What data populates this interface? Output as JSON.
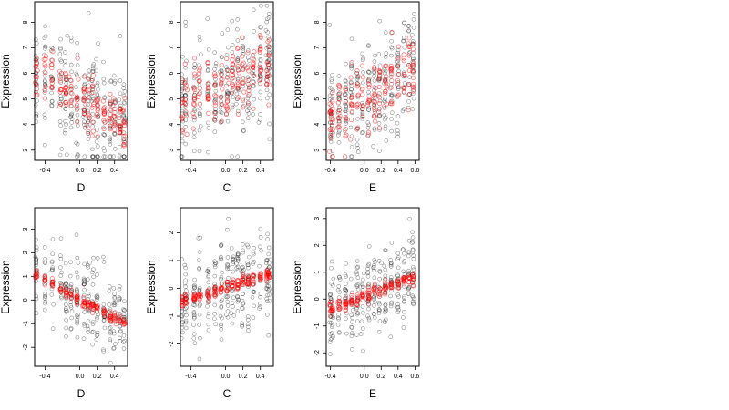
{
  "colors": {
    "observed": "#000000",
    "fitted": "#ff0000",
    "background": "#ffffff"
  },
  "chart_data": [
    {
      "type": "scatter",
      "row": 0,
      "col": 0,
      "xlabel": "D",
      "ylabel": "Expression",
      "xlim": [
        -0.52,
        0.55
      ],
      "ylim": [
        2.6,
        8.8
      ],
      "xticks": [
        -0.4,
        0.0,
        0.2,
        0.4
      ],
      "xtick_labels": [
        "-0.4",
        "0.0",
        "0.2",
        "0.4"
      ],
      "yticks": [
        3,
        4,
        5,
        6,
        7,
        8
      ],
      "ytick_labels": [
        "3",
        "4",
        "5",
        "6",
        "7",
        "8"
      ],
      "columns": [
        -0.5,
        -0.4,
        -0.32,
        -0.22,
        -0.16,
        -0.1,
        -0.03,
        0.05,
        0.1,
        0.15,
        0.2,
        0.28,
        0.35,
        0.4,
        0.46,
        0.51
      ],
      "fit_line": {
        "at_xmin": 6.1,
        "at_xmax": 3.9
      },
      "observed_spread": 1.1,
      "fitted_spread": 0.55
    },
    {
      "type": "scatter",
      "row": 0,
      "col": 1,
      "xlabel": "C",
      "ylabel": "Expression",
      "xlim": [
        -0.52,
        0.55
      ],
      "ylim": [
        2.6,
        8.8
      ],
      "xticks": [
        -0.4,
        0.0,
        0.2,
        0.4
      ],
      "xtick_labels": [
        "-0.4",
        "0.0",
        "0.2",
        "0.4"
      ],
      "yticks": [
        3,
        4,
        5,
        6,
        7,
        8
      ],
      "ytick_labels": [
        "3",
        "4",
        "5",
        "6",
        "7",
        "8"
      ],
      "columns": [
        -0.5,
        -0.46,
        -0.36,
        -0.3,
        -0.2,
        -0.12,
        -0.05,
        0.02,
        0.08,
        0.14,
        0.2,
        0.26,
        0.32,
        0.4,
        0.48,
        0.5
      ],
      "fit_line": {
        "at_xmin": 4.7,
        "at_xmax": 6.4
      },
      "observed_spread": 1.15,
      "fitted_spread": 0.7
    },
    {
      "type": "scatter",
      "row": 0,
      "col": 2,
      "xlabel": "E",
      "ylabel": "Expression",
      "xlim": [
        -0.45,
        0.65
      ],
      "ylim": [
        2.6,
        8.8
      ],
      "xticks": [
        -0.4,
        0.0,
        0.2,
        0.4,
        0.6
      ],
      "xtick_labels": [
        "-0.4",
        "0.0",
        "0.2",
        "0.4",
        "0.6"
      ],
      "yticks": [
        3,
        4,
        5,
        6,
        7,
        8
      ],
      "ytick_labels": [
        "3",
        "4",
        "5",
        "6",
        "7",
        "8"
      ],
      "columns": [
        -0.4,
        -0.38,
        -0.3,
        -0.22,
        -0.15,
        -0.08,
        -0.02,
        0.05,
        0.12,
        0.18,
        0.25,
        0.32,
        0.4,
        0.47,
        0.53,
        0.58
      ],
      "fit_line": {
        "at_xmin": 4.1,
        "at_xmax": 6.4
      },
      "observed_spread": 1.05,
      "fitted_spread": 0.65
    },
    {
      "type": "scatter",
      "row": 1,
      "col": 0,
      "xlabel": "D",
      "ylabel": "Expression",
      "xlim": [
        -0.52,
        0.55
      ],
      "ylim": [
        -2.8,
        3.9
      ],
      "xticks": [
        -0.4,
        0.0,
        0.2,
        0.4
      ],
      "xtick_labels": [
        "-0.4",
        "0.0",
        "0.2",
        "0.4"
      ],
      "yticks": [
        -2,
        -1,
        0,
        1,
        2,
        3
      ],
      "ytick_labels": [
        "-2",
        "-1",
        "0",
        "1",
        "2",
        "3"
      ],
      "columns": [
        -0.5,
        -0.4,
        -0.32,
        -0.22,
        -0.16,
        -0.1,
        -0.03,
        0.05,
        0.1,
        0.15,
        0.2,
        0.28,
        0.35,
        0.4,
        0.46,
        0.51
      ],
      "fit_line": {
        "at_xmin": 1.05,
        "at_xmax": -1.05
      },
      "observed_spread": 0.85,
      "fitted_spread": 0.12
    },
    {
      "type": "scatter",
      "row": 1,
      "col": 1,
      "xlabel": "C",
      "ylabel": "Expression",
      "xlim": [
        -0.52,
        0.55
      ],
      "ylim": [
        -2.8,
        2.9
      ],
      "xticks": [
        -0.4,
        0.0,
        0.2,
        0.4
      ],
      "xtick_labels": [
        "-0.4",
        "0.0",
        "0.2",
        "0.4"
      ],
      "yticks": [
        -2,
        -1,
        0,
        1,
        2
      ],
      "ytick_labels": [
        "-2",
        "-1",
        "0",
        "1",
        "2"
      ],
      "columns": [
        -0.5,
        -0.46,
        -0.36,
        -0.3,
        -0.2,
        -0.12,
        -0.05,
        0.02,
        0.08,
        0.14,
        0.2,
        0.26,
        0.32,
        0.4,
        0.48,
        0.5
      ],
      "fit_line": {
        "at_xmin": -0.5,
        "at_xmax": 0.55
      },
      "observed_spread": 0.85,
      "fitted_spread": 0.12
    },
    {
      "type": "scatter",
      "row": 1,
      "col": 2,
      "xlabel": "E",
      "ylabel": "Expression",
      "xlim": [
        -0.45,
        0.65
      ],
      "ylim": [
        -2.5,
        3.4
      ],
      "xticks": [
        -0.4,
        0.0,
        0.2,
        0.4,
        0.6
      ],
      "xtick_labels": [
        "-0.4",
        "0.0",
        "0.2",
        "0.4",
        "0.6"
      ],
      "yticks": [
        -2,
        -1,
        0,
        1,
        2,
        3
      ],
      "ytick_labels": [
        "-2",
        "-1",
        "0",
        "1",
        "2",
        "3"
      ],
      "columns": [
        -0.4,
        -0.38,
        -0.3,
        -0.22,
        -0.15,
        -0.08,
        -0.02,
        0.05,
        0.12,
        0.18,
        0.25,
        0.32,
        0.4,
        0.47,
        0.53,
        0.58
      ],
      "fit_line": {
        "at_xmin": -0.45,
        "at_xmax": 0.9
      },
      "observed_spread": 0.8,
      "fitted_spread": 0.12
    }
  ]
}
